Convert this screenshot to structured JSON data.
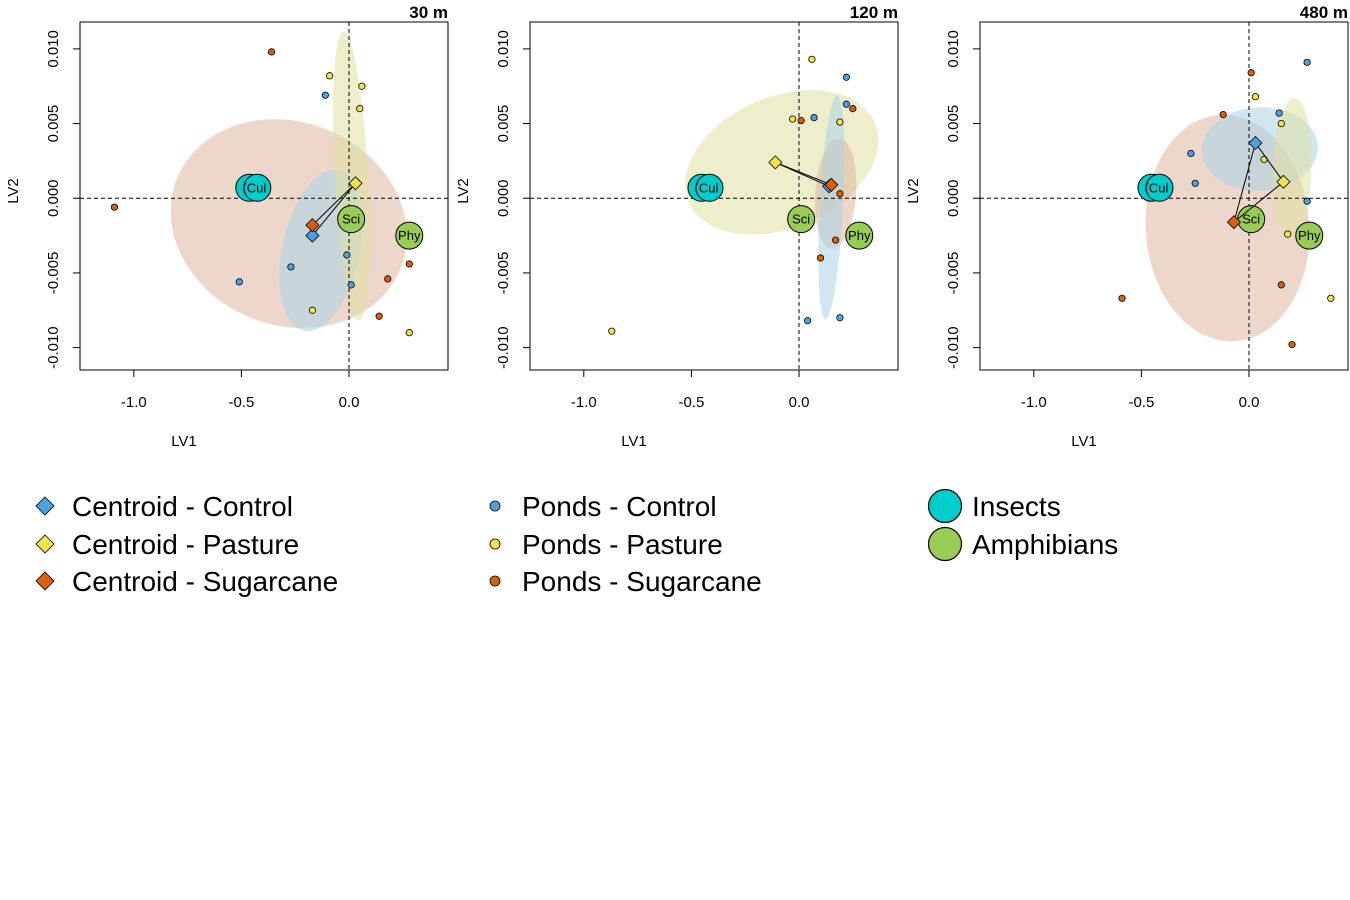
{
  "chart_data": {
    "type": "scatter",
    "xlabel": "LV1",
    "ylabel": "LV2",
    "xlim": [
      -1.25,
      0.46
    ],
    "ylim": [
      -0.0115,
      0.0118
    ],
    "x_ticks": [
      -1.0,
      -0.5,
      0.0
    ],
    "x_tick_labels": [
      "-1.0",
      "-0.5",
      "0.0"
    ],
    "y_ticks": [
      -0.01,
      -0.005,
      0.0,
      0.005,
      0.01
    ],
    "y_tick_labels": [
      "-0.010",
      "-0.005",
      "0.000",
      "0.005",
      "0.010"
    ],
    "reference_lines": {
      "x": 0,
      "y": 0,
      "style": "dashed"
    },
    "colors": {
      "control": "#4da3e0",
      "pasture": "#f2e34a",
      "sugarcane": "#d95f0e",
      "insects": "#00cccc",
      "amphibians": "#99cc55",
      "ellipse_control": "#a9d4e8",
      "ellipse_pasture": "#e0e0a0",
      "ellipse_sugarcane": "#dcb79e"
    },
    "panels": [
      {
        "title": "30 m",
        "ellipses": [
          {
            "group": "sugarcane",
            "cx": -0.28,
            "cy": -0.0017,
            "rx": 0.56,
            "ry": 0.0068,
            "angle": 22
          },
          {
            "group": "control",
            "cx": -0.13,
            "cy": -0.0035,
            "rx": 0.18,
            "ry": 0.0055,
            "angle": 12
          },
          {
            "group": "pasture",
            "cx": 0.01,
            "cy": 0.0015,
            "rx": 0.077,
            "ry": 0.0097,
            "angle": -3
          }
        ],
        "centroids": [
          {
            "group": "control",
            "x": -0.17,
            "y": -0.0025
          },
          {
            "group": "pasture",
            "x": 0.03,
            "y": 0.001
          },
          {
            "group": "sugarcane",
            "x": -0.17,
            "y": -0.0018
          }
        ],
        "ponds": {
          "control": [
            [
              -0.51,
              -0.0056
            ],
            [
              -0.27,
              -0.0046
            ],
            [
              -0.11,
              0.0069
            ],
            [
              -0.01,
              -0.0038
            ],
            [
              0.01,
              -0.0058
            ]
          ],
          "pasture": [
            [
              -0.09,
              0.0082
            ],
            [
              0.06,
              0.0075
            ],
            [
              0.05,
              0.006
            ],
            [
              -0.17,
              -0.0075
            ],
            [
              0.28,
              -0.009
            ]
          ],
          "sugarcane": [
            [
              -0.36,
              0.0098
            ],
            [
              -1.09,
              -0.0006
            ],
            [
              0.28,
              -0.0044
            ],
            [
              0.18,
              -0.0054
            ],
            [
              0.14,
              -0.0079
            ]
          ]
        },
        "species": [
          {
            "group": "insects",
            "label": "(Cul",
            "x": -0.44,
            "y": 0.0007
          },
          {
            "group": "amphibians",
            "label": "Sci",
            "x": 0.01,
            "y": -0.0014
          },
          {
            "group": "amphibians",
            "label": "Phy",
            "x": 0.28,
            "y": -0.0025
          }
        ]
      },
      {
        "title": "120 m",
        "ellipses": [
          {
            "group": "pasture",
            "cx": -0.08,
            "cy": 0.0024,
            "rx": 0.47,
            "ry": 0.0044,
            "angle": -23
          },
          {
            "group": "sugarcane",
            "cx": 0.17,
            "cy": 0.0003,
            "rx": 0.095,
            "ry": 0.0037,
            "angle": 4
          },
          {
            "group": "control",
            "cx": 0.15,
            "cy": -0.0006,
            "rx": 0.054,
            "ry": 0.0075,
            "angle": 3
          }
        ],
        "centroids": [
          {
            "group": "control",
            "x": 0.14,
            "y": 0.0008
          },
          {
            "group": "pasture",
            "x": -0.11,
            "y": 0.0024
          },
          {
            "group": "sugarcane",
            "x": 0.15,
            "y": 0.0009
          }
        ],
        "ponds": {
          "control": [
            [
              0.22,
              0.0081
            ],
            [
              0.22,
              0.0063
            ],
            [
              0.07,
              0.0054
            ],
            [
              0.04,
              -0.0082
            ],
            [
              0.19,
              -0.008
            ]
          ],
          "pasture": [
            [
              0.06,
              0.0093
            ],
            [
              -0.03,
              0.0053
            ],
            [
              0.19,
              0.0051
            ],
            [
              -0.87,
              -0.0089
            ]
          ],
          "sugarcane": [
            [
              0.25,
              0.006
            ],
            [
              0.01,
              0.0052
            ],
            [
              0.19,
              0.0003
            ],
            [
              0.17,
              -0.0028
            ],
            [
              0.1,
              -0.004
            ]
          ]
        },
        "species": [
          {
            "group": "insects",
            "label": "(Cul",
            "x": -0.43,
            "y": 0.0007
          },
          {
            "group": "amphibians",
            "label": "Sci",
            "x": 0.01,
            "y": -0.0014
          },
          {
            "group": "amphibians",
            "label": "Phy",
            "x": 0.28,
            "y": -0.0025
          }
        ]
      },
      {
        "title": "480 m",
        "ellipses": [
          {
            "group": "sugarcane",
            "cx": -0.1,
            "cy": -0.002,
            "rx": 0.38,
            "ry": 0.0076,
            "angle": -4
          },
          {
            "group": "control",
            "cx": 0.05,
            "cy": 0.0033,
            "rx": 0.27,
            "ry": 0.0028,
            "angle": -3
          },
          {
            "group": "pasture",
            "cx": 0.2,
            "cy": 0.002,
            "rx": 0.09,
            "ry": 0.0047,
            "angle": 2
          }
        ],
        "centroids": [
          {
            "group": "control",
            "x": 0.03,
            "y": 0.0037
          },
          {
            "group": "pasture",
            "x": 0.16,
            "y": 0.0011
          },
          {
            "group": "sugarcane",
            "x": -0.07,
            "y": -0.0016
          }
        ],
        "ponds": {
          "control": [
            [
              0.27,
              0.0091
            ],
            [
              0.14,
              0.0057
            ],
            [
              -0.27,
              0.003
            ],
            [
              -0.25,
              0.001
            ],
            [
              0.27,
              -0.0002
            ]
          ],
          "pasture": [
            [
              0.03,
              0.0068
            ],
            [
              0.15,
              0.005
            ],
            [
              0.07,
              0.0026
            ],
            [
              0.18,
              -0.0024
            ],
            [
              0.38,
              -0.0067
            ]
          ],
          "sugarcane": [
            [
              0.01,
              0.0084
            ],
            [
              -0.12,
              0.0056
            ],
            [
              -0.59,
              -0.0067
            ],
            [
              0.15,
              -0.0058
            ],
            [
              0.2,
              -0.0098
            ]
          ]
        },
        "species": [
          {
            "group": "insects",
            "label": "(Cul",
            "x": -0.43,
            "y": 0.0007
          },
          {
            "group": "amphibians",
            "label": "Sci",
            "x": 0.01,
            "y": -0.0014
          },
          {
            "group": "amphibians",
            "label": "Phy",
            "x": 0.28,
            "y": -0.0025
          }
        ]
      }
    ],
    "legend": {
      "placement": "bottom",
      "entries": [
        {
          "label": "Centroid - Control",
          "marker": "diamond",
          "group": "control"
        },
        {
          "label": "Centroid - Pasture",
          "marker": "diamond",
          "group": "pasture"
        },
        {
          "label": "Centroid - Sugarcane",
          "marker": "diamond",
          "group": "sugarcane"
        },
        {
          "label": "Ponds - Control",
          "marker": "point",
          "group": "control"
        },
        {
          "label": "Ponds - Pasture",
          "marker": "point",
          "group": "pasture"
        },
        {
          "label": "Ponds - Sugarcane",
          "marker": "point",
          "group": "sugarcane"
        },
        {
          "label": "Insects",
          "marker": "circle",
          "group": "insects"
        },
        {
          "label": "Amphibians",
          "marker": "circle",
          "group": "amphibians"
        }
      ]
    }
  }
}
